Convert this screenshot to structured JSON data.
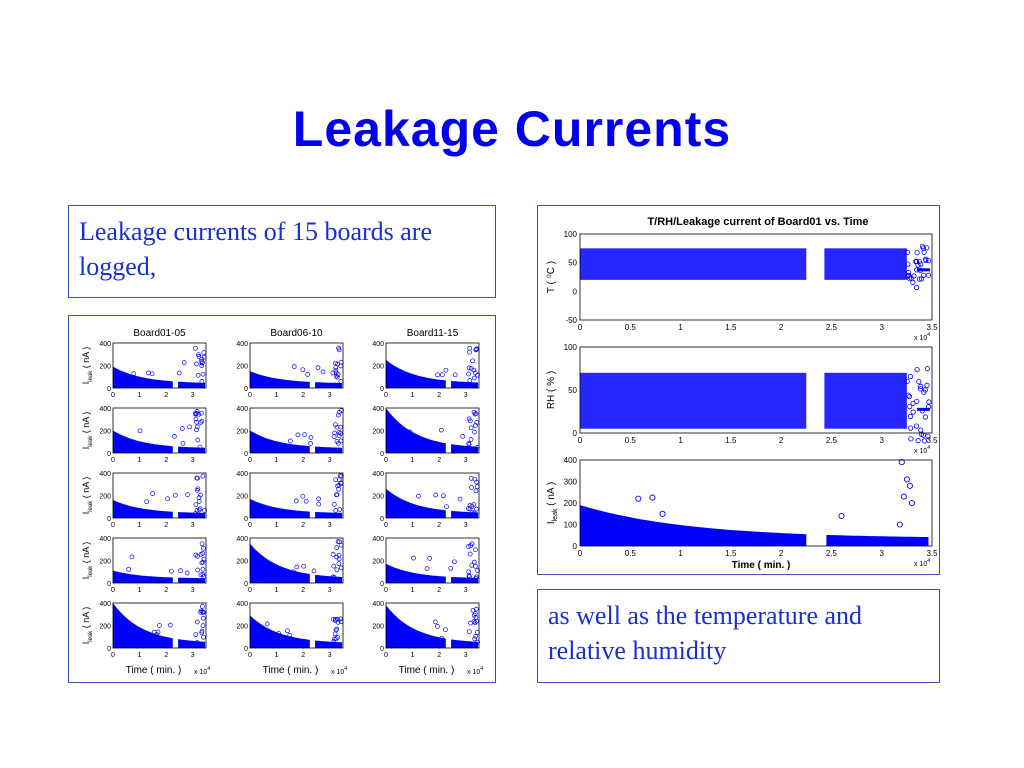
{
  "slide": {
    "title": "Leakage Currents",
    "caption_top": "Leakage currents of 15 boards are logged,",
    "caption_bottom": "as well as the temperature and relative humidity"
  },
  "colors": {
    "title": "#0000ee",
    "caption": "#1a2fd0",
    "marker": "#0000ff",
    "frame": "#3b4fb8"
  },
  "chart_data": [
    {
      "type": "scatter",
      "id": "grid",
      "columns": [
        "Board01-05",
        "Board06-10",
        "Board11-15"
      ],
      "rows": 5,
      "xlabel": "Time ( min. )",
      "x_exponent": "x 10",
      "x_exponent_power": "4",
      "ylabel": "I",
      "ylabel_sub": "leak",
      "ylabel_unit": "( nA )",
      "xticks": [
        0,
        1,
        2,
        3
      ],
      "yticks": [
        0,
        200,
        400
      ],
      "xlim": [
        0,
        3.5
      ],
      "ylim": [
        0,
        400
      ],
      "gap": [
        2.25,
        2.45
      ],
      "boards_peak_nA": [
        [
          190,
          150,
          250
        ],
        [
          200,
          200,
          400
        ],
        [
          160,
          170,
          260
        ],
        [
          110,
          350,
          170
        ],
        [
          400,
          290,
          380
        ]
      ],
      "marker": "o"
    },
    {
      "type": "scatter",
      "id": "temp",
      "title": "T/RH/Leakage current of Board01 vs. Time",
      "ylabel": "T ( ⁰C )",
      "xticks": [
        0,
        0.5,
        1,
        1.5,
        2,
        2.5,
        3,
        3.5
      ],
      "yticks": [
        -50,
        0,
        50,
        100
      ],
      "xlim": [
        0,
        3.5
      ],
      "ylim": [
        -50,
        100
      ],
      "band": [
        20,
        75
      ],
      "x_exponent": "x 10",
      "x_exponent_power": "4"
    },
    {
      "type": "scatter",
      "id": "rh",
      "ylabel": "RH ( % )",
      "xticks": [
        0,
        0.5,
        1,
        1.5,
        2,
        2.5,
        3,
        3.5
      ],
      "yticks": [
        0,
        50,
        100
      ],
      "xlim": [
        0,
        3.5
      ],
      "ylim": [
        0,
        100
      ],
      "band": [
        5,
        70
      ],
      "x_exponent": "x 10",
      "x_exponent_power": "4"
    },
    {
      "type": "scatter",
      "id": "leak",
      "ylabel": "I",
      "ylabel_sub": "leak",
      "ylabel_unit": "( nA )",
      "xlabel": "Time ( min. )",
      "xticks": [
        0,
        0.5,
        1,
        1.5,
        2,
        2.5,
        3,
        3.5
      ],
      "yticks": [
        0,
        100,
        200,
        300,
        400
      ],
      "xlim": [
        0,
        3.5
      ],
      "ylim": [
        0,
        400
      ],
      "peak_nA": 190,
      "outliers": [
        [
          0.58,
          220
        ],
        [
          0.72,
          225
        ],
        [
          0.82,
          150
        ],
        [
          2.6,
          140
        ],
        [
          3.2,
          390
        ],
        [
          3.25,
          310
        ],
        [
          3.28,
          280
        ],
        [
          3.22,
          230
        ],
        [
          3.3,
          200
        ],
        [
          3.18,
          100
        ]
      ],
      "x_exponent": "x 10",
      "x_exponent_power": "4"
    }
  ]
}
